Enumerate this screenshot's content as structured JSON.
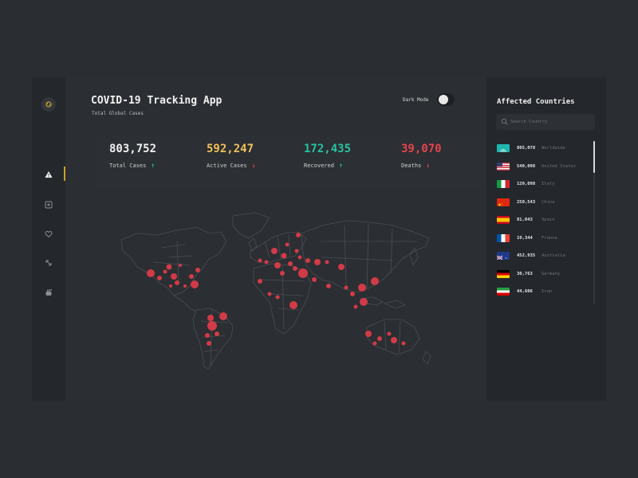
{
  "app": {
    "title": "COVID-19 Tracking App",
    "subtitle": "Total Global Cases"
  },
  "dark_mode": {
    "label": "Dark Mode",
    "enabled": true
  },
  "sidebar": {
    "items": [
      {
        "icon": "virus-logo-icon",
        "active": false
      },
      {
        "icon": "warning-icon",
        "active": true
      },
      {
        "icon": "medical-plus-icon",
        "active": false
      },
      {
        "icon": "heart-icon",
        "active": false
      },
      {
        "icon": "arrows-icon",
        "active": false
      },
      {
        "icon": "hand-icon",
        "active": false
      }
    ],
    "accent": "#c9a227"
  },
  "stats": [
    {
      "value": "803,752",
      "label": "Total Cases",
      "trend": "up",
      "color": "#f0f0f0",
      "arrow_color": "#25c49a"
    },
    {
      "value": "592,247",
      "label": "Active Cases",
      "trend": "down",
      "color": "#f0c05a",
      "arrow_color": "#e04650"
    },
    {
      "value": "172,435",
      "label": "Recovered",
      "trend": "up",
      "color": "#27c3a0",
      "arrow_color": "#25c49a"
    },
    {
      "value": "39,070",
      "label": "Deaths",
      "trend": "down",
      "color": "#e5434f",
      "arrow_color": "#e04650"
    }
  ],
  "map": {
    "marker_color": "#d13b47",
    "land_stroke": "#4a4e54"
  },
  "right_panel": {
    "title": "Affected Countries",
    "search_placeholder": "Search Country",
    "countries": [
      {
        "count": "805,078",
        "name": "Worldwide",
        "flag": "worldwide"
      },
      {
        "count": "540,098",
        "name": "United States",
        "flag": "us"
      },
      {
        "count": "120,098",
        "name": "Italy",
        "flag": "italy"
      },
      {
        "count": "250,543",
        "name": "China",
        "flag": "china"
      },
      {
        "count": "81,043",
        "name": "Spain",
        "flag": "spain"
      },
      {
        "count": "19,344",
        "name": "France",
        "flag": "france"
      },
      {
        "count": "452,935",
        "name": "Australia",
        "flag": "australia"
      },
      {
        "count": "30,763",
        "name": "Germany",
        "flag": "germany"
      },
      {
        "count": "44,606",
        "name": "Iran",
        "flag": "iran"
      }
    ]
  }
}
